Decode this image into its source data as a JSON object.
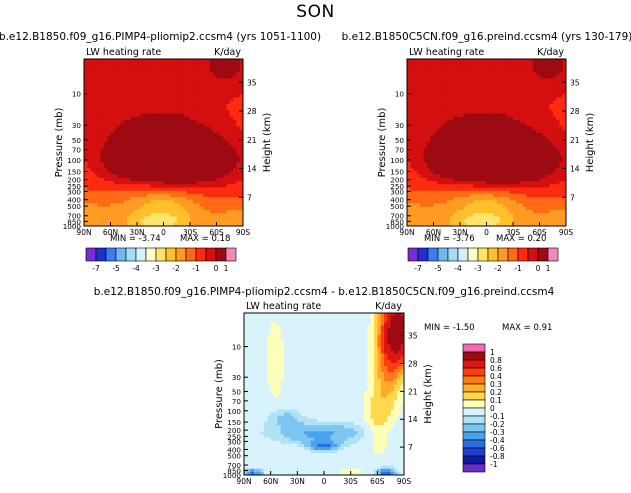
{
  "page_title": "SON",
  "chart_data": [
    {
      "type": "heatmap",
      "title": "b.e12.B1850.f09_g16.PIMP4-pliomip2.ccsm4 (yrs 1051-1100)",
      "left_label": "LW heating rate",
      "right_label": "K/day",
      "xlabel": "",
      "ylabel": "Pressure (mb)",
      "y2label": "Height (km)",
      "x_ticks": [
        "90N",
        "60N",
        "30N",
        "0",
        "30S",
        "60S",
        "90S"
      ],
      "y_ticks": [
        "10",
        "30",
        "50",
        "70",
        "100",
        "150",
        "200",
        "250",
        "300",
        "400",
        "500",
        "700",
        "850",
        "1000"
      ],
      "y2_ticks": [
        "35",
        "28",
        "21",
        "14",
        "7"
      ],
      "ylim": [
        1000,
        3
      ],
      "min_text": "MIN = -3.74",
      "max_text": "MAX = 0.18",
      "colorbar_labels": [
        "-7",
        "-5",
        "-4",
        "-3",
        "-2",
        "-1",
        "0",
        "1"
      ],
      "pattern": "control"
    },
    {
      "type": "heatmap",
      "title": "b.e12.B1850C5CN.f09_g16.preind.ccsm4 (yrs 130-179)",
      "left_label": "LW heating rate",
      "right_label": "K/day",
      "xlabel": "",
      "ylabel": "Pressure (mb)",
      "y2label": "Height (km)",
      "x_ticks": [
        "90N",
        "60N",
        "30N",
        "0",
        "30S",
        "60S",
        "90S"
      ],
      "y_ticks": [
        "10",
        "30",
        "50",
        "70",
        "100",
        "150",
        "200",
        "250",
        "300",
        "400",
        "500",
        "700",
        "850",
        "1000"
      ],
      "y2_ticks": [
        "35",
        "28",
        "21",
        "14",
        "7"
      ],
      "ylim": [
        1000,
        3
      ],
      "min_text": "MIN = -3.76",
      "max_text": "MAX = 0.20",
      "colorbar_labels": [
        "-7",
        "-5",
        "-4",
        "-3",
        "-2",
        "-1",
        "0",
        "1"
      ],
      "pattern": "control"
    },
    {
      "type": "heatmap",
      "title": "b.e12.B1850.f09_g16.PIMP4-pliomip2.ccsm4 - b.e12.B1850C5CN.f09_g16.preind.ccsm4",
      "left_label": "LW heating rate",
      "right_label": "K/day",
      "xlabel": "",
      "ylabel": "Pressure (mb)",
      "y2label": "Height (km)",
      "x_ticks": [
        "90N",
        "60N",
        "30N",
        "0",
        "30S",
        "60S",
        "90S"
      ],
      "y_ticks": [
        "10",
        "30",
        "50",
        "70",
        "100",
        "150",
        "200",
        "250",
        "300",
        "400",
        "500",
        "700",
        "850",
        "1000"
      ],
      "y2_ticks": [
        "35",
        "28",
        "21",
        "14",
        "7"
      ],
      "ylim": [
        1000,
        3
      ],
      "min_text": "MIN = -1.50",
      "max_text": "MAX = 0.91",
      "colorbar_labels": [
        "1",
        "0.8",
        "0.6",
        "0.4",
        "0.3",
        "0.2",
        "0.1",
        "0",
        "-0.1",
        "-0.2",
        "-0.3",
        "-0.4",
        "-0.6",
        "-0.8",
        "-1"
      ],
      "pattern": "difference"
    }
  ],
  "colors": {
    "control_scale": [
      "#7b2bd6",
      "#1e2fd0",
      "#3b7ded",
      "#72b6f2",
      "#a4dcf5",
      "#d4f1fb",
      "#ffffcc",
      "#ffe46b",
      "#ffc02b",
      "#ff9a22",
      "#ff6a14",
      "#ff2a10",
      "#d40f0f",
      "#9e0a12",
      "#f28ab6"
    ],
    "diff_scale": [
      "#f06ab1",
      "#9e0a12",
      "#dc1512",
      "#ff3b12",
      "#ff7a18",
      "#ffac2b",
      "#ffd84e",
      "#ffffb9",
      "#d8f3fb",
      "#b0e2f6",
      "#7ec6f2",
      "#4aa1ec",
      "#2f6ce0",
      "#1d3ecf",
      "#0b1a9c",
      "#6a2bc8"
    ]
  }
}
